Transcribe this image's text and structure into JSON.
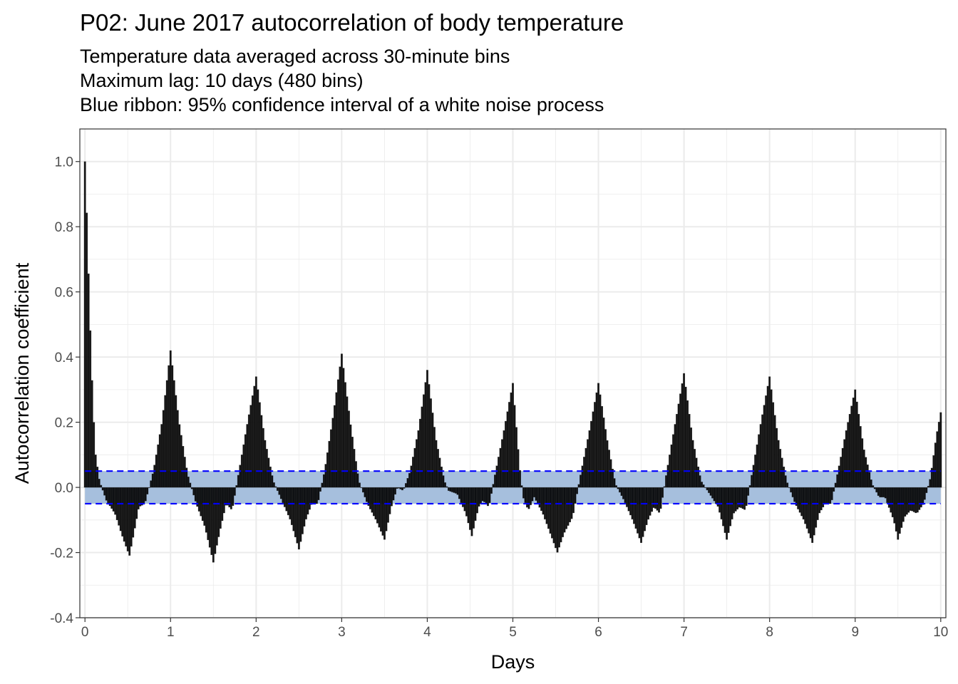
{
  "chart_data": {
    "type": "bar",
    "title": "P02: June 2017 autocorrelation of body temperature",
    "subtitle": [
      "Temperature data averaged across 30-minute bins",
      "Maximum lag: 10 days (480 bins)",
      "Blue ribbon: 95% confidence interval of a white noise process"
    ],
    "xlabel": "Days",
    "ylabel": "Autocorrelation coefficient",
    "xlim": [
      -0.06,
      10.06
    ],
    "ylim": [
      -0.4,
      1.1
    ],
    "x_ticks": [
      0,
      1,
      2,
      3,
      4,
      5,
      6,
      7,
      8,
      9,
      10
    ],
    "x_tick_labels": [
      "0",
      "1",
      "2",
      "3",
      "4",
      "5",
      "6",
      "7",
      "8",
      "9",
      "10"
    ],
    "y_ticks": [
      -0.4,
      -0.2,
      0.0,
      0.2,
      0.4,
      0.6,
      0.8,
      1.0
    ],
    "y_tick_labels": [
      "-0.4",
      "-0.2",
      "0.0",
      "0.2",
      "0.4",
      "0.6",
      "0.8",
      "1.0"
    ],
    "bin_width_days": 0.0208333,
    "confidence_band": [
      -0.05,
      0.05
    ],
    "grid": true,
    "colors": {
      "bars": "#000000",
      "ribbon": "#a6bfdd",
      "ci_line": "#0000ff",
      "grid": "#ebebeb",
      "panel_border": "#333333"
    },
    "acf_points": [
      {
        "x": 0.0,
        "y": 1.0
      },
      {
        "x": 0.02,
        "y": 0.85
      },
      {
        "x": 0.04,
        "y": 0.67
      },
      {
        "x": 0.06,
        "y": 0.5
      },
      {
        "x": 0.08,
        "y": 0.35
      },
      {
        "x": 0.1,
        "y": 0.22
      },
      {
        "x": 0.125,
        "y": 0.1
      },
      {
        "x": 0.17,
        "y": 0.02
      },
      {
        "x": 0.25,
        "y": -0.04
      },
      {
        "x": 0.35,
        "y": -0.08
      },
      {
        "x": 0.45,
        "y": -0.16
      },
      {
        "x": 0.52,
        "y": -0.21
      },
      {
        "x": 0.58,
        "y": -0.13
      },
      {
        "x": 0.63,
        "y": -0.06
      },
      {
        "x": 0.7,
        "y": -0.05
      },
      {
        "x": 0.8,
        "y": 0.05
      },
      {
        "x": 0.9,
        "y": 0.2
      },
      {
        "x": 1.0,
        "y": 0.42
      },
      {
        "x": 1.1,
        "y": 0.2
      },
      {
        "x": 1.2,
        "y": 0.04
      },
      {
        "x": 1.3,
        "y": -0.05
      },
      {
        "x": 1.4,
        "y": -0.12
      },
      {
        "x": 1.5,
        "y": -0.23
      },
      {
        "x": 1.58,
        "y": -0.13
      },
      {
        "x": 1.65,
        "y": -0.05
      },
      {
        "x": 1.72,
        "y": -0.07
      },
      {
        "x": 1.8,
        "y": 0.05
      },
      {
        "x": 1.9,
        "y": 0.2
      },
      {
        "x": 2.0,
        "y": 0.34
      },
      {
        "x": 2.1,
        "y": 0.15
      },
      {
        "x": 2.2,
        "y": 0.02
      },
      {
        "x": 2.3,
        "y": -0.04
      },
      {
        "x": 2.4,
        "y": -0.1
      },
      {
        "x": 2.5,
        "y": -0.19
      },
      {
        "x": 2.58,
        "y": -0.1
      },
      {
        "x": 2.65,
        "y": -0.05
      },
      {
        "x": 2.72,
        "y": -0.05
      },
      {
        "x": 2.8,
        "y": 0.05
      },
      {
        "x": 2.9,
        "y": 0.22
      },
      {
        "x": 3.0,
        "y": 0.41
      },
      {
        "x": 3.1,
        "y": 0.2
      },
      {
        "x": 3.2,
        "y": 0.02
      },
      {
        "x": 3.3,
        "y": -0.05
      },
      {
        "x": 3.4,
        "y": -0.1
      },
      {
        "x": 3.5,
        "y": -0.16
      },
      {
        "x": 3.58,
        "y": -0.06
      },
      {
        "x": 3.65,
        "y": 0.0
      },
      {
        "x": 3.72,
        "y": -0.01
      },
      {
        "x": 3.8,
        "y": 0.05
      },
      {
        "x": 3.9,
        "y": 0.18
      },
      {
        "x": 4.0,
        "y": 0.36
      },
      {
        "x": 4.1,
        "y": 0.15
      },
      {
        "x": 4.2,
        "y": 0.02
      },
      {
        "x": 4.25,
        "y": -0.01
      },
      {
        "x": 4.35,
        "y": -0.02
      },
      {
        "x": 4.45,
        "y": -0.08
      },
      {
        "x": 4.52,
        "y": -0.15
      },
      {
        "x": 4.6,
        "y": -0.06
      },
      {
        "x": 4.65,
        "y": -0.04
      },
      {
        "x": 4.72,
        "y": -0.06
      },
      {
        "x": 4.8,
        "y": 0.05
      },
      {
        "x": 4.9,
        "y": 0.18
      },
      {
        "x": 5.0,
        "y": 0.32
      },
      {
        "x": 5.08,
        "y": 0.06
      },
      {
        "x": 5.12,
        "y": -0.03
      },
      {
        "x": 5.18,
        "y": -0.07
      },
      {
        "x": 5.25,
        "y": -0.03
      },
      {
        "x": 5.35,
        "y": -0.08
      },
      {
        "x": 5.45,
        "y": -0.15
      },
      {
        "x": 5.52,
        "y": -0.2
      },
      {
        "x": 5.6,
        "y": -0.14
      },
      {
        "x": 5.7,
        "y": -0.09
      },
      {
        "x": 5.8,
        "y": 0.05
      },
      {
        "x": 5.9,
        "y": 0.18
      },
      {
        "x": 6.0,
        "y": 0.32
      },
      {
        "x": 6.1,
        "y": 0.15
      },
      {
        "x": 6.2,
        "y": 0.01
      },
      {
        "x": 6.3,
        "y": -0.04
      },
      {
        "x": 6.4,
        "y": -0.1
      },
      {
        "x": 6.5,
        "y": -0.17
      },
      {
        "x": 6.58,
        "y": -0.1
      },
      {
        "x": 6.65,
        "y": -0.06
      },
      {
        "x": 6.72,
        "y": -0.08
      },
      {
        "x": 6.8,
        "y": 0.05
      },
      {
        "x": 6.9,
        "y": 0.2
      },
      {
        "x": 7.0,
        "y": 0.35
      },
      {
        "x": 7.1,
        "y": 0.15
      },
      {
        "x": 7.2,
        "y": 0.02
      },
      {
        "x": 7.3,
        "y": -0.02
      },
      {
        "x": 7.4,
        "y": -0.06
      },
      {
        "x": 7.5,
        "y": -0.16
      },
      {
        "x": 7.58,
        "y": -0.08
      },
      {
        "x": 7.65,
        "y": -0.06
      },
      {
        "x": 7.72,
        "y": -0.07
      },
      {
        "x": 7.8,
        "y": 0.05
      },
      {
        "x": 7.9,
        "y": 0.2
      },
      {
        "x": 8.0,
        "y": 0.34
      },
      {
        "x": 8.1,
        "y": 0.15
      },
      {
        "x": 8.2,
        "y": 0.02
      },
      {
        "x": 8.3,
        "y": -0.05
      },
      {
        "x": 8.4,
        "y": -0.1
      },
      {
        "x": 8.5,
        "y": -0.17
      },
      {
        "x": 8.58,
        "y": -0.08
      },
      {
        "x": 8.65,
        "y": -0.05
      },
      {
        "x": 8.72,
        "y": -0.05
      },
      {
        "x": 8.8,
        "y": 0.05
      },
      {
        "x": 8.9,
        "y": 0.18
      },
      {
        "x": 9.0,
        "y": 0.3
      },
      {
        "x": 9.1,
        "y": 0.12
      },
      {
        "x": 9.2,
        "y": 0.01
      },
      {
        "x": 9.28,
        "y": -0.03
      },
      {
        "x": 9.35,
        "y": -0.03
      },
      {
        "x": 9.45,
        "y": -0.1
      },
      {
        "x": 9.5,
        "y": -0.16
      },
      {
        "x": 9.58,
        "y": -0.09
      },
      {
        "x": 9.65,
        "y": -0.07
      },
      {
        "x": 9.72,
        "y": -0.08
      },
      {
        "x": 9.8,
        "y": -0.05
      },
      {
        "x": 9.88,
        "y": 0.03
      },
      {
        "x": 9.95,
        "y": 0.16
      },
      {
        "x": 10.0,
        "y": 0.23
      }
    ]
  }
}
